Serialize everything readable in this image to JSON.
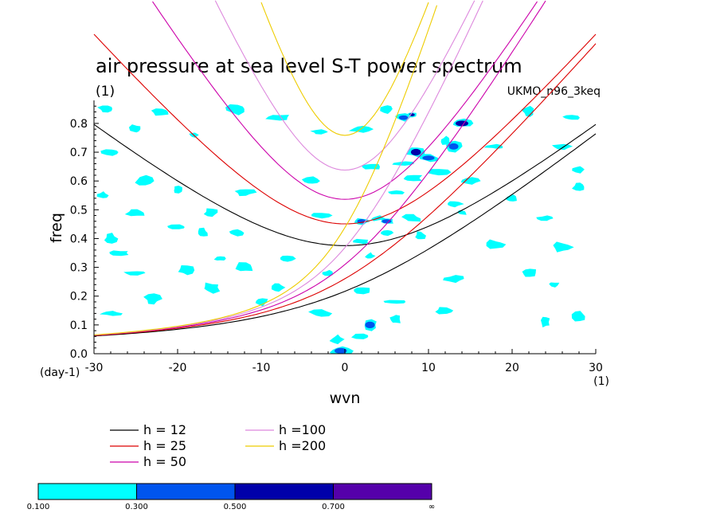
{
  "colors": {
    "level_1": "#00ffff",
    "level_2": "#0055ee",
    "level_3": "#0000aa",
    "level_4": "#5500aa",
    "h12": "#000000",
    "h25": "#dd0000",
    "h50": "#cc00aa",
    "h100": "#dd88dd",
    "h200": "#eecc00"
  },
  "chart_data": {
    "type": "heatmap",
    "title": "air pressure at sea level S-T power spectrum",
    "subtitle_left": "(1)",
    "subtitle_right": "UKMO_n96_3keq",
    "xlabel": "wvn",
    "ylabel": "freq",
    "x_unit_label": "(1)",
    "y_unit_label": "(day-1)",
    "xlim": [
      -30,
      30
    ],
    "ylim": [
      0,
      0.88
    ],
    "xticks": [
      -30,
      -20,
      -10,
      0,
      10,
      20,
      30
    ],
    "xtick_labels": [
      "-30",
      "-20",
      "-10",
      "0",
      "10",
      "20",
      "30"
    ],
    "yticks": [
      0.0,
      0.1,
      0.2,
      0.3,
      0.4,
      0.5,
      0.6,
      0.7,
      0.8
    ],
    "ytick_labels": [
      "0.0",
      "0.1",
      "0.2",
      "0.3",
      "0.4",
      "0.5",
      "0.6",
      "0.7",
      "0.8"
    ],
    "contour_levels": [
      "0.100",
      "0.300",
      "0.500",
      "0.700",
      "∞"
    ],
    "dispersion_curves": [
      {
        "name": "h = 12",
        "color_key": "h12"
      },
      {
        "name": "h = 25",
        "color_key": "h25"
      },
      {
        "name": "h = 50",
        "color_key": "h50"
      },
      {
        "name": "h =100",
        "color_key": "h100"
      },
      {
        "name": "h =200",
        "color_key": "h200"
      }
    ],
    "patches": [
      {
        "x": -28.5,
        "y": 0.85,
        "l": 1
      },
      {
        "x": -22,
        "y": 0.84,
        "l": 1
      },
      {
        "x": -13,
        "y": 0.85,
        "l": 1
      },
      {
        "x": -8,
        "y": 0.82,
        "l": 1
      },
      {
        "x": 5,
        "y": 0.85,
        "l": 1
      },
      {
        "x": 8,
        "y": 0.83,
        "l": 3
      },
      {
        "x": 7,
        "y": 0.82,
        "l": 2
      },
      {
        "x": 14,
        "y": 0.8,
        "l": 3
      },
      {
        "x": 22,
        "y": 0.84,
        "l": 1
      },
      {
        "x": 27,
        "y": 0.82,
        "l": 1
      },
      {
        "x": -25,
        "y": 0.78,
        "l": 1
      },
      {
        "x": -18,
        "y": 0.76,
        "l": 1
      },
      {
        "x": -3,
        "y": 0.77,
        "l": 1
      },
      {
        "x": 2,
        "y": 0.78,
        "l": 1
      },
      {
        "x": 12,
        "y": 0.74,
        "l": 1
      },
      {
        "x": 13,
        "y": 0.72,
        "l": 2
      },
      {
        "x": 8.5,
        "y": 0.7,
        "l": 3
      },
      {
        "x": 10,
        "y": 0.68,
        "l": 2
      },
      {
        "x": 18,
        "y": 0.72,
        "l": 1
      },
      {
        "x": 26,
        "y": 0.72,
        "l": 1
      },
      {
        "x": -28,
        "y": 0.7,
        "l": 1
      },
      {
        "x": 3,
        "y": 0.65,
        "l": 1
      },
      {
        "x": 7,
        "y": 0.66,
        "l": 1
      },
      {
        "x": 11,
        "y": 0.63,
        "l": 1
      },
      {
        "x": 28,
        "y": 0.64,
        "l": 1
      },
      {
        "x": -24,
        "y": 0.6,
        "l": 1
      },
      {
        "x": -4,
        "y": 0.6,
        "l": 1
      },
      {
        "x": 8,
        "y": 0.61,
        "l": 1
      },
      {
        "x": 15,
        "y": 0.6,
        "l": 1
      },
      {
        "x": -29,
        "y": 0.55,
        "l": 1
      },
      {
        "x": -20,
        "y": 0.57,
        "l": 1
      },
      {
        "x": -12,
        "y": 0.56,
        "l": 1
      },
      {
        "x": 6,
        "y": 0.56,
        "l": 1
      },
      {
        "x": 13,
        "y": 0.52,
        "l": 1
      },
      {
        "x": 20,
        "y": 0.54,
        "l": 1
      },
      {
        "x": 28,
        "y": 0.58,
        "l": 1
      },
      {
        "x": -25,
        "y": 0.49,
        "l": 1
      },
      {
        "x": -16,
        "y": 0.49,
        "l": 1
      },
      {
        "x": -3,
        "y": 0.48,
        "l": 1
      },
      {
        "x": 2,
        "y": 0.46,
        "l": 2
      },
      {
        "x": 4,
        "y": 0.47,
        "l": 1
      },
      {
        "x": 8,
        "y": 0.47,
        "l": 1
      },
      {
        "x": 14,
        "y": 0.49,
        "l": 1
      },
      {
        "x": 24,
        "y": 0.47,
        "l": 1
      },
      {
        "x": -20,
        "y": 0.44,
        "l": 1
      },
      {
        "x": -17,
        "y": 0.42,
        "l": 1
      },
      {
        "x": -13,
        "y": 0.42,
        "l": 1
      },
      {
        "x": -28,
        "y": 0.4,
        "l": 1
      },
      {
        "x": 5,
        "y": 0.42,
        "l": 1
      },
      {
        "x": 5,
        "y": 0.46,
        "l": 2
      },
      {
        "x": 9,
        "y": 0.41,
        "l": 1
      },
      {
        "x": 2,
        "y": 0.39,
        "l": 1
      },
      {
        "x": 18,
        "y": 0.38,
        "l": 1
      },
      {
        "x": 26,
        "y": 0.37,
        "l": 1
      },
      {
        "x": -27,
        "y": 0.35,
        "l": 1
      },
      {
        "x": -15,
        "y": 0.33,
        "l": 1
      },
      {
        "x": -7,
        "y": 0.33,
        "l": 1
      },
      {
        "x": 3,
        "y": 0.34,
        "l": 1
      },
      {
        "x": -25,
        "y": 0.28,
        "l": 1
      },
      {
        "x": -19,
        "y": 0.29,
        "l": 1
      },
      {
        "x": -12,
        "y": 0.3,
        "l": 1
      },
      {
        "x": -2,
        "y": 0.28,
        "l": 1
      },
      {
        "x": 13,
        "y": 0.26,
        "l": 1
      },
      {
        "x": 22,
        "y": 0.28,
        "l": 1
      },
      {
        "x": -16,
        "y": 0.23,
        "l": 1
      },
      {
        "x": -8,
        "y": 0.23,
        "l": 1
      },
      {
        "x": 2,
        "y": 0.22,
        "l": 1
      },
      {
        "x": 25,
        "y": 0.24,
        "l": 1
      },
      {
        "x": -23,
        "y": 0.19,
        "l": 1
      },
      {
        "x": -10,
        "y": 0.18,
        "l": 1
      },
      {
        "x": 6,
        "y": 0.18,
        "l": 1
      },
      {
        "x": -28,
        "y": 0.14,
        "l": 1
      },
      {
        "x": -3,
        "y": 0.14,
        "l": 1
      },
      {
        "x": 12,
        "y": 0.15,
        "l": 1
      },
      {
        "x": 28,
        "y": 0.13,
        "l": 1
      },
      {
        "x": 3,
        "y": 0.1,
        "l": 2
      },
      {
        "x": 6,
        "y": 0.12,
        "l": 1
      },
      {
        "x": 24,
        "y": 0.11,
        "l": 1
      },
      {
        "x": -1,
        "y": 0.05,
        "l": 1
      },
      {
        "x": 2,
        "y": 0.06,
        "l": 1
      },
      {
        "x": -0.5,
        "y": 0.01,
        "l": 2
      }
    ]
  }
}
